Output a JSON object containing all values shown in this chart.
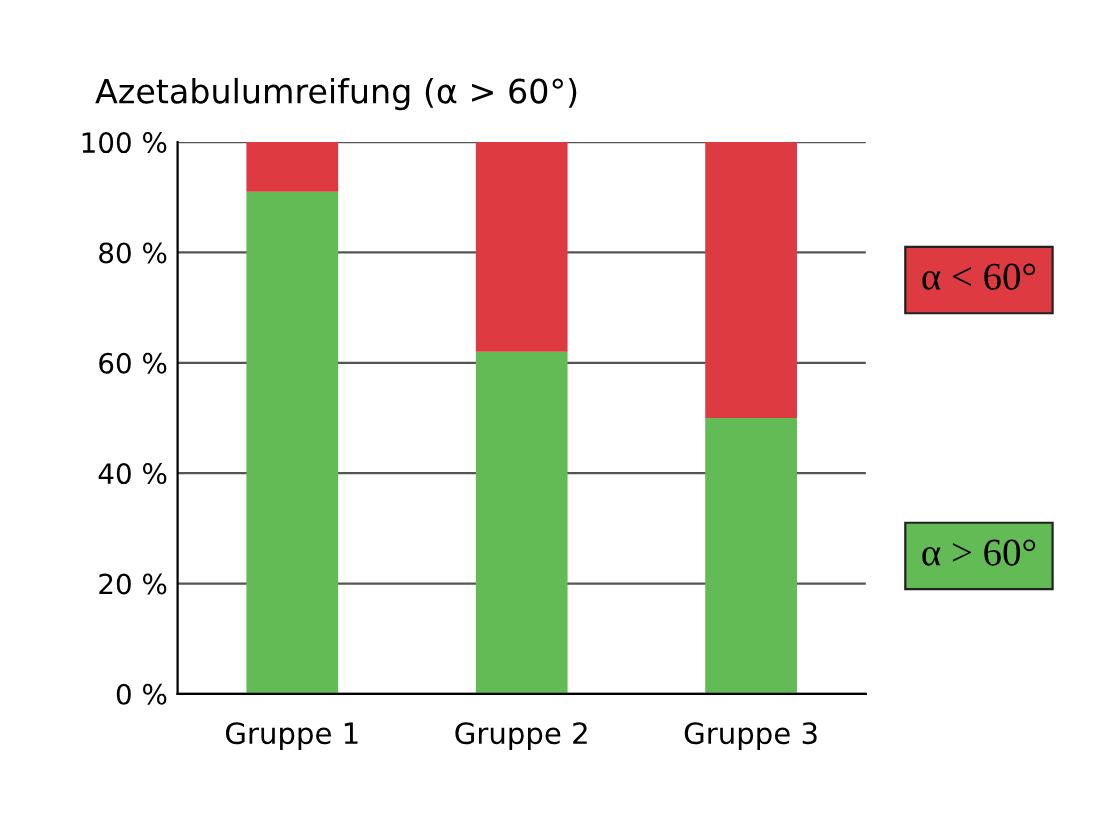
{
  "chart_data": {
    "type": "bar",
    "title": "Azetabulumreifung (α > 60°)",
    "categories": [
      "Gruppe 1",
      "Gruppe 2",
      "Gruppe 3"
    ],
    "stacked": true,
    "series": [
      {
        "name": "α > 60°",
        "color": "#62bb55",
        "values": [
          91,
          62,
          50
        ]
      },
      {
        "name": "α < 60°",
        "color": "#dd3a41",
        "values": [
          9,
          38,
          50
        ]
      }
    ],
    "ylim": [
      0,
      100
    ],
    "yticks": [
      {
        "value": 0,
        "label": "0 %"
      },
      {
        "value": 20,
        "label": "20 %"
      },
      {
        "value": 40,
        "label": "40 %"
      },
      {
        "value": 60,
        "label": "60 %"
      },
      {
        "value": 80,
        "label": "80 %"
      },
      {
        "value": 100,
        "label": "100 %"
      }
    ],
    "grid": "y",
    "legend": "right"
  }
}
